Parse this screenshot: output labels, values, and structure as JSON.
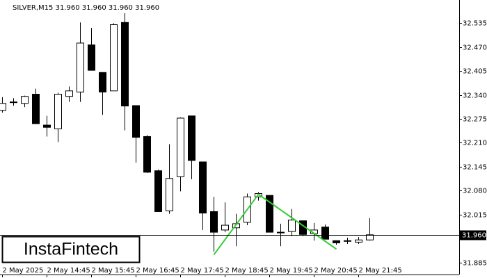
{
  "chart_data": {
    "type": "candlestick",
    "title": "SILVER,M15  31.960 31.960 31.960 31.960",
    "categories": [
      "2 May 2025",
      null,
      null,
      null,
      "2 May 14:45",
      null,
      null,
      null,
      "2 May 15:45",
      null,
      null,
      null,
      "2 May 16:45",
      null,
      null,
      null,
      "2 May 17:45",
      null,
      null,
      null,
      "2 May 18:45",
      null,
      null,
      null,
      "2 May 19:45",
      null,
      null,
      null,
      "2 May 20:45",
      null,
      null,
      null,
      "2 May 21:45",
      null
    ],
    "open": [
      32.298,
      32.321,
      32.317,
      32.342,
      32.258,
      32.248,
      32.336,
      32.348,
      32.476,
      32.401,
      32.351,
      32.537,
      32.311,
      32.227,
      32.134,
      32.025,
      32.118,
      32.283,
      32.158,
      32.023,
      31.973,
      31.979,
      31.994,
      32.063,
      32.067,
      31.967,
      31.969,
      31.998,
      31.963,
      31.981,
      31.944,
      31.944,
      31.94,
      31.946
    ],
    "high": [
      32.334,
      32.331,
      32.338,
      32.357,
      32.283,
      32.346,
      32.363,
      32.537,
      32.522,
      32.401,
      32.535,
      32.562,
      32.311,
      32.231,
      32.137,
      32.206,
      32.279,
      32.283,
      32.158,
      32.063,
      32.048,
      32.017,
      32.072,
      32.076,
      32.067,
      31.99,
      32.03,
      31.998,
      31.992,
      31.988,
      31.944,
      31.952,
      31.954,
      32.005
    ],
    "low": [
      32.292,
      32.311,
      32.307,
      32.262,
      32.227,
      32.212,
      32.321,
      32.321,
      32.407,
      32.286,
      32.351,
      32.244,
      32.156,
      32.128,
      32.023,
      32.017,
      32.078,
      32.111,
      31.973,
      31.914,
      31.967,
      31.929,
      31.986,
      32.053,
      31.967,
      31.929,
      31.956,
      31.956,
      31.944,
      31.948,
      31.933,
      31.935,
      31.935,
      31.944
    ],
    "close": [
      32.317,
      32.321,
      32.336,
      32.262,
      32.252,
      32.342,
      32.351,
      32.481,
      32.407,
      32.348,
      32.531,
      32.31,
      32.225,
      32.13,
      32.023,
      32.113,
      32.277,
      32.162,
      32.019,
      31.967,
      31.986,
      31.99,
      32.063,
      32.072,
      31.967,
      31.967,
      32.0,
      31.961,
      31.973,
      31.948,
      31.938,
      31.944,
      31.946,
      31.96
    ],
    "up_color": "#ffffff",
    "down_color": "#000000",
    "ylim": [
      31.852,
      32.598
    ],
    "yticks": [
      32.535,
      {
        "value": 32.47,
        "label": "32.470"
      },
      32.405,
      {
        "value": 32.34,
        "label": "32.340"
      },
      32.275,
      {
        "value": 32.21,
        "label": "32.210"
      },
      32.145,
      {
        "value": 32.08,
        "label": "32.080"
      },
      32.015,
      31.885
    ],
    "last_price": {
      "value": 31.96,
      "label": "31.960"
    },
    "pattern": {
      "color": "#33cc33",
      "x": [
        19,
        23,
        30
      ],
      "values": [
        31.906,
        32.07,
        31.921
      ]
    },
    "watermark": "InstaFintech"
  }
}
